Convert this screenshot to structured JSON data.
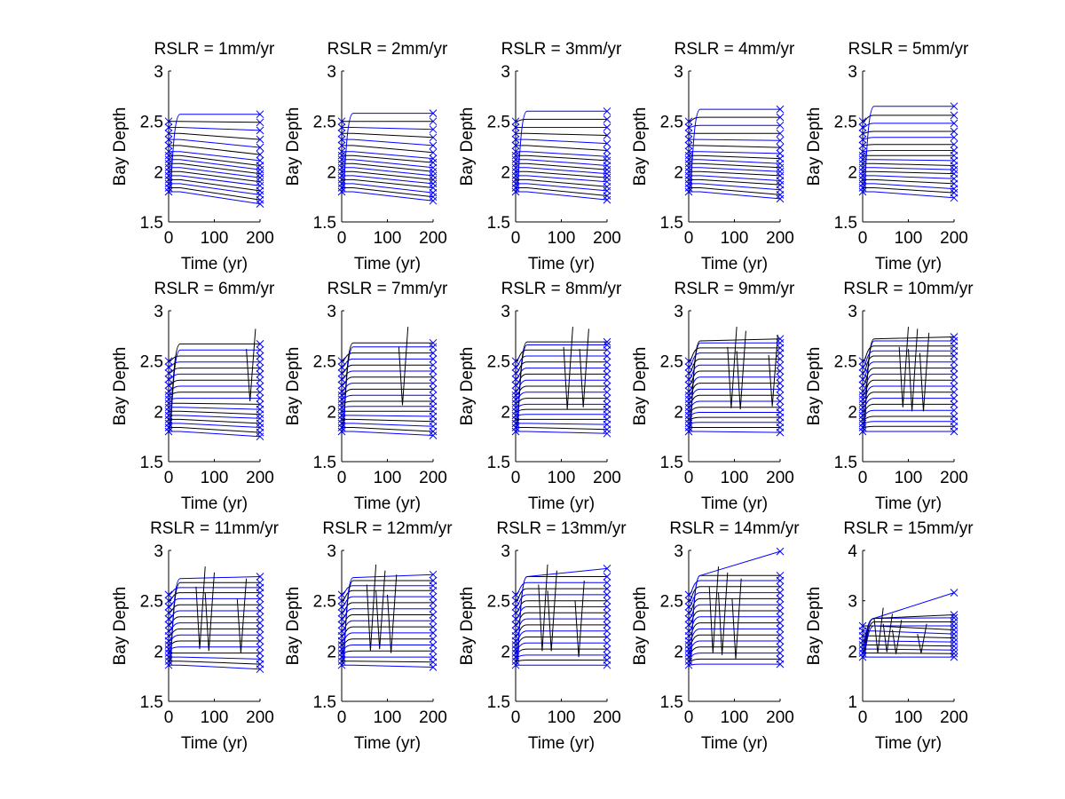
{
  "figure": {
    "background": "#ffffff",
    "line_color": "#000000",
    "marker_color": "#0000ff",
    "marker": "x"
  },
  "chart_data": [
    {
      "type": "line",
      "title": "RSLR = 1mm/yr",
      "xlabel": "Time (yr)",
      "ylabel": "Bay Depth",
      "xlim": [
        0,
        200
      ],
      "ylim": [
        1.5,
        3
      ],
      "xticks": [
        0,
        100,
        200
      ],
      "yticks": [
        1.5,
        2,
        2.5,
        3
      ],
      "ytick_labels": [
        "1.5",
        "2",
        "2.5",
        "3"
      ],
      "start_depths": [
        1.8,
        1.84,
        1.88,
        1.92,
        1.96,
        2.0,
        2.04,
        2.08,
        2.12,
        2.16,
        2.2,
        2.26,
        2.32,
        2.38,
        2.44,
        2.5
      ],
      "end_depths": [
        1.68,
        1.72,
        1.77,
        1.81,
        1.86,
        1.9,
        1.94,
        1.98,
        2.02,
        2.06,
        2.11,
        2.17,
        2.24,
        2.32,
        2.41,
        2.49,
        2.57
      ],
      "max_depth": 2.52,
      "spikes": []
    },
    {
      "type": "line",
      "title": "RSLR = 2mm/yr",
      "xlabel": "Time (yr)",
      "ylabel": "Bay Depth",
      "xlim": [
        0,
        200
      ],
      "ylim": [
        1.5,
        3
      ],
      "xticks": [
        0,
        100,
        200
      ],
      "yticks": [
        1.5,
        2,
        2.5,
        3
      ],
      "ytick_labels": [
        "1.5",
        "2",
        "2.5",
        "3"
      ],
      "start_depths": [
        1.8,
        1.84,
        1.88,
        1.92,
        1.96,
        2.0,
        2.04,
        2.08,
        2.12,
        2.16,
        2.2,
        2.26,
        2.32,
        2.38,
        2.44,
        2.5
      ],
      "end_depths": [
        1.71,
        1.75,
        1.79,
        1.84,
        1.88,
        1.92,
        1.96,
        2.0,
        2.04,
        2.09,
        2.13,
        2.19,
        2.26,
        2.34,
        2.42,
        2.5,
        2.58
      ],
      "max_depth": 2.53,
      "spikes": []
    },
    {
      "type": "line",
      "title": "RSLR = 3mm/yr",
      "xlabel": "Time (yr)",
      "ylabel": "Bay Depth",
      "xlim": [
        0,
        200
      ],
      "ylim": [
        1.5,
        3
      ],
      "xticks": [
        0,
        100,
        200
      ],
      "yticks": [
        1.5,
        2,
        2.5,
        3
      ],
      "ytick_labels": [
        "1.5",
        "2",
        "2.5",
        "3"
      ],
      "start_depths": [
        1.8,
        1.84,
        1.88,
        1.92,
        1.96,
        2.0,
        2.04,
        2.08,
        2.12,
        2.16,
        2.2,
        2.26,
        2.32,
        2.38,
        2.44,
        2.5
      ],
      "end_depths": [
        1.72,
        1.76,
        1.81,
        1.85,
        1.9,
        1.94,
        1.98,
        2.02,
        2.06,
        2.11,
        2.15,
        2.21,
        2.28,
        2.36,
        2.44,
        2.52,
        2.6
      ],
      "max_depth": 2.54,
      "spikes": []
    },
    {
      "type": "line",
      "title": "RSLR = 4mm/yr",
      "xlabel": "Time (yr)",
      "ylabel": "Bay Depth",
      "xlim": [
        0,
        200
      ],
      "ylim": [
        1.5,
        3
      ],
      "xticks": [
        0,
        100,
        200
      ],
      "yticks": [
        1.5,
        2,
        2.5,
        3
      ],
      "ytick_labels": [
        "1.5",
        "2",
        "2.5",
        "3"
      ],
      "start_depths": [
        1.8,
        1.84,
        1.88,
        1.92,
        1.96,
        2.0,
        2.04,
        2.08,
        2.12,
        2.16,
        2.2,
        2.26,
        2.32,
        2.38,
        2.44,
        2.5
      ],
      "end_depths": [
        1.73,
        1.77,
        1.82,
        1.87,
        1.91,
        1.96,
        2.0,
        2.04,
        2.08,
        2.13,
        2.18,
        2.24,
        2.31,
        2.38,
        2.46,
        2.54,
        2.62
      ],
      "max_depth": 2.55,
      "spikes": []
    },
    {
      "type": "line",
      "title": "RSLR = 5mm/yr",
      "xlabel": "Time (yr)",
      "ylabel": "Bay Depth",
      "xlim": [
        0,
        200
      ],
      "ylim": [
        1.5,
        3
      ],
      "xticks": [
        0,
        100,
        200
      ],
      "yticks": [
        1.5,
        2,
        2.5,
        3
      ],
      "ytick_labels": [
        "1.5",
        "2",
        "2.5",
        "3"
      ],
      "start_depths": [
        1.8,
        1.84,
        1.88,
        1.92,
        1.96,
        2.0,
        2.04,
        2.08,
        2.12,
        2.16,
        2.2,
        2.26,
        2.32,
        2.38,
        2.44,
        2.5
      ],
      "end_depths": [
        1.74,
        1.79,
        1.83,
        1.88,
        1.93,
        1.98,
        2.02,
        2.06,
        2.11,
        2.16,
        2.21,
        2.27,
        2.34,
        2.4,
        2.48,
        2.56,
        2.65
      ],
      "max_depth": 2.56,
      "spikes": []
    },
    {
      "type": "line",
      "title": "RSLR = 6mm/yr",
      "xlabel": "Time (yr)",
      "ylabel": "Bay Depth",
      "xlim": [
        0,
        200
      ],
      "ylim": [
        1.5,
        3
      ],
      "xticks": [
        0,
        100,
        200
      ],
      "yticks": [
        1.5,
        2,
        2.5,
        3
      ],
      "ytick_labels": [
        "1.5",
        "2",
        "2.5",
        "3"
      ],
      "start_depths": [
        1.8,
        1.84,
        1.88,
        1.92,
        1.96,
        2.0,
        2.04,
        2.08,
        2.12,
        2.16,
        2.2,
        2.26,
        2.32,
        2.38,
        2.44,
        2.5
      ],
      "end_depths": [
        1.75,
        1.79,
        1.84,
        1.88,
        1.93,
        1.97,
        2.02,
        2.07,
        2.13,
        2.19,
        2.25,
        2.31,
        2.37,
        2.43,
        2.49,
        2.55,
        2.61,
        2.67
      ],
      "max_depth": 2.57,
      "spikes": [
        {
          "start": 170,
          "end": 190,
          "low": 2.1,
          "high": 2.82
        }
      ]
    },
    {
      "type": "line",
      "title": "RSLR = 7mm/yr",
      "xlabel": "Time (yr)",
      "ylabel": "Bay Depth",
      "xlim": [
        0,
        200
      ],
      "ylim": [
        1.5,
        3
      ],
      "xticks": [
        0,
        100,
        200
      ],
      "yticks": [
        1.5,
        2,
        2.5,
        3
      ],
      "ytick_labels": [
        "1.5",
        "2",
        "2.5",
        "3"
      ],
      "start_depths": [
        1.8,
        1.84,
        1.88,
        1.92,
        1.96,
        2.0,
        2.04,
        2.08,
        2.12,
        2.16,
        2.2,
        2.26,
        2.32,
        2.38,
        2.44,
        2.5
      ],
      "end_depths": [
        1.76,
        1.8,
        1.85,
        1.9,
        1.95,
        2.0,
        2.05,
        2.1,
        2.16,
        2.22,
        2.28,
        2.34,
        2.4,
        2.46,
        2.52,
        2.58,
        2.64,
        2.68
      ],
      "max_depth": 2.58,
      "spikes": [
        {
          "start": 125,
          "end": 145,
          "low": 2.06,
          "high": 2.84
        }
      ]
    },
    {
      "type": "line",
      "title": "RSLR = 8mm/yr",
      "xlabel": "Time (yr)",
      "ylabel": "Bay Depth",
      "xlim": [
        0,
        200
      ],
      "ylim": [
        1.5,
        3
      ],
      "xticks": [
        0,
        100,
        200
      ],
      "yticks": [
        1.5,
        2,
        2.5,
        3
      ],
      "ytick_labels": [
        "1.5",
        "2",
        "2.5",
        "3"
      ],
      "start_depths": [
        1.8,
        1.84,
        1.88,
        1.92,
        1.96,
        2.0,
        2.04,
        2.08,
        2.12,
        2.16,
        2.2,
        2.26,
        2.32,
        2.38,
        2.44,
        2.5
      ],
      "end_depths": [
        1.78,
        1.82,
        1.87,
        1.92,
        1.97,
        2.02,
        2.07,
        2.13,
        2.19,
        2.25,
        2.31,
        2.37,
        2.43,
        2.49,
        2.55,
        2.61,
        2.66,
        2.69
      ],
      "max_depth": 2.59,
      "spikes": [
        {
          "start": 105,
          "end": 125,
          "low": 2.02,
          "high": 2.84
        },
        {
          "start": 140,
          "end": 160,
          "low": 2.04,
          "high": 2.82
        }
      ]
    },
    {
      "type": "line",
      "title": "RSLR = 9mm/yr",
      "xlabel": "Time (yr)",
      "ylabel": "Bay Depth",
      "xlim": [
        0,
        200
      ],
      "ylim": [
        1.5,
        3
      ],
      "xticks": [
        0,
        100,
        200
      ],
      "yticks": [
        1.5,
        2,
        2.5,
        3
      ],
      "ytick_labels": [
        "1.5",
        "2",
        "2.5",
        "3"
      ],
      "start_depths": [
        1.8,
        1.84,
        1.88,
        1.92,
        1.96,
        2.0,
        2.04,
        2.08,
        2.12,
        2.16,
        2.2,
        2.26,
        2.32,
        2.38,
        2.44,
        2.5
      ],
      "end_depths": [
        1.79,
        1.84,
        1.89,
        1.94,
        1.99,
        2.04,
        2.1,
        2.16,
        2.22,
        2.28,
        2.34,
        2.4,
        2.46,
        2.52,
        2.58,
        2.63,
        2.68,
        2.72
      ],
      "max_depth": 2.6,
      "spikes": [
        {
          "start": 85,
          "end": 105,
          "low": 2.03,
          "high": 2.84
        },
        {
          "start": 105,
          "end": 125,
          "low": 2.02,
          "high": 2.8
        },
        {
          "start": 175,
          "end": 195,
          "low": 2.05,
          "high": 2.76
        }
      ]
    },
    {
      "type": "line",
      "title": "RSLR = 10mm/yr",
      "xlabel": "Time (yr)",
      "ylabel": "Bay Depth",
      "xlim": [
        0,
        200
      ],
      "ylim": [
        1.5,
        3
      ],
      "xticks": [
        0,
        100,
        200
      ],
      "yticks": [
        1.5,
        2,
        2.5,
        3
      ],
      "ytick_labels": [
        "1.5",
        "2",
        "2.5",
        "3"
      ],
      "start_depths": [
        1.8,
        1.84,
        1.88,
        1.92,
        1.96,
        2.0,
        2.04,
        2.08,
        2.12,
        2.16,
        2.2,
        2.26,
        2.32,
        2.38,
        2.44,
        2.5
      ],
      "end_depths": [
        1.8,
        1.85,
        1.9,
        1.95,
        2.01,
        2.07,
        2.13,
        2.19,
        2.25,
        2.31,
        2.37,
        2.43,
        2.49,
        2.55,
        2.6,
        2.65,
        2.7,
        2.74
      ],
      "max_depth": 2.62,
      "spikes": [
        {
          "start": 80,
          "end": 100,
          "low": 2.04,
          "high": 2.84
        },
        {
          "start": 100,
          "end": 120,
          "low": 2.0,
          "high": 2.82
        },
        {
          "start": 125,
          "end": 145,
          "low": 2.0,
          "high": 2.78
        }
      ]
    },
    {
      "type": "line",
      "title": "RSLR = 11mm/yr",
      "xlabel": "Time (yr)",
      "ylabel": "Bay Depth",
      "xlim": [
        0,
        200
      ],
      "ylim": [
        1.5,
        3
      ],
      "xticks": [
        0,
        100,
        200
      ],
      "yticks": [
        1.5,
        2,
        2.5,
        3
      ],
      "ytick_labels": [
        "1.5",
        "2",
        "2.5",
        "3"
      ],
      "start_depths": [
        1.86,
        1.9,
        1.94,
        1.98,
        2.02,
        2.06,
        2.1,
        2.15,
        2.2,
        2.26,
        2.32,
        2.38,
        2.44,
        2.5,
        2.56
      ],
      "end_depths": [
        1.82,
        1.87,
        1.92,
        1.98,
        2.04,
        2.1,
        2.16,
        2.22,
        2.28,
        2.34,
        2.4,
        2.46,
        2.52,
        2.58,
        2.63,
        2.68,
        2.74
      ],
      "max_depth": 2.62,
      "spikes": [
        {
          "start": 60,
          "end": 80,
          "low": 2.02,
          "high": 2.84
        },
        {
          "start": 80,
          "end": 100,
          "low": 2.0,
          "high": 2.78
        },
        {
          "start": 150,
          "end": 170,
          "low": 1.98,
          "high": 2.72
        }
      ]
    },
    {
      "type": "line",
      "title": "RSLR = 12mm/yr",
      "xlabel": "Time (yr)",
      "ylabel": "Bay Depth",
      "xlim": [
        0,
        200
      ],
      "ylim": [
        1.5,
        3
      ],
      "xticks": [
        0,
        100,
        200
      ],
      "yticks": [
        1.5,
        2,
        2.5,
        3
      ],
      "ytick_labels": [
        "1.5",
        "2",
        "2.5",
        "3"
      ],
      "start_depths": [
        1.86,
        1.9,
        1.94,
        1.98,
        2.02,
        2.06,
        2.1,
        2.15,
        2.2,
        2.26,
        2.32,
        2.38,
        2.44,
        2.5,
        2.56
      ],
      "end_depths": [
        1.84,
        1.89,
        1.94,
        2.0,
        2.06,
        2.12,
        2.18,
        2.24,
        2.3,
        2.36,
        2.42,
        2.48,
        2.54,
        2.6,
        2.65,
        2.7,
        2.76
      ],
      "max_depth": 2.63,
      "spikes": [
        {
          "start": 55,
          "end": 75,
          "low": 2.0,
          "high": 2.86
        },
        {
          "start": 75,
          "end": 95,
          "low": 2.02,
          "high": 2.8
        },
        {
          "start": 100,
          "end": 120,
          "low": 1.98,
          "high": 2.76
        }
      ]
    },
    {
      "type": "line",
      "title": "RSLR = 13mm/yr",
      "xlabel": "Time (yr)",
      "ylabel": "Bay Depth",
      "xlim": [
        0,
        200
      ],
      "ylim": [
        1.5,
        3
      ],
      "xticks": [
        0,
        100,
        200
      ],
      "yticks": [
        1.5,
        2,
        2.5,
        3
      ],
      "ytick_labels": [
        "1.5",
        "2",
        "2.5",
        "3"
      ],
      "start_depths": [
        1.86,
        1.9,
        1.94,
        1.98,
        2.02,
        2.06,
        2.1,
        2.15,
        2.2,
        2.26,
        2.32,
        2.38,
        2.44,
        2.5,
        2.56
      ],
      "end_depths": [
        1.86,
        1.91,
        1.96,
        2.02,
        2.08,
        2.14,
        2.2,
        2.26,
        2.32,
        2.38,
        2.44,
        2.5,
        2.56,
        2.62,
        2.68,
        2.74,
        2.82
      ],
      "max_depth": 2.64,
      "spikes": [
        {
          "start": 50,
          "end": 70,
          "low": 2.0,
          "high": 2.86
        },
        {
          "start": 70,
          "end": 90,
          "low": 2.0,
          "high": 2.8
        },
        {
          "start": 130,
          "end": 150,
          "low": 1.94,
          "high": 2.7
        }
      ]
    },
    {
      "type": "line",
      "title": "RSLR = 14mm/yr",
      "xlabel": "Time (yr)",
      "ylabel": "Bay Depth",
      "xlim": [
        0,
        200
      ],
      "ylim": [
        1.5,
        3
      ],
      "xticks": [
        0,
        100,
        200
      ],
      "yticks": [
        1.5,
        2,
        2.5,
        3
      ],
      "ytick_labels": [
        "1.5",
        "2",
        "2.5",
        "3"
      ],
      "start_depths": [
        1.86,
        1.9,
        1.94,
        1.98,
        2.02,
        2.06,
        2.1,
        2.15,
        2.2,
        2.26,
        2.32,
        2.38,
        2.44,
        2.5,
        2.56
      ],
      "end_depths": [
        1.87,
        1.92,
        1.98,
        2.04,
        2.1,
        2.16,
        2.22,
        2.28,
        2.34,
        2.4,
        2.46,
        2.52,
        2.58,
        2.64,
        2.7,
        2.75,
        2.99
      ],
      "max_depth": 2.65,
      "spikes": [
        {
          "start": 45,
          "end": 65,
          "low": 1.98,
          "high": 2.84
        },
        {
          "start": 65,
          "end": 85,
          "low": 1.96,
          "high": 2.78
        },
        {
          "start": 95,
          "end": 115,
          "low": 1.92,
          "high": 2.72
        }
      ]
    },
    {
      "type": "line",
      "title": "RSLR = 15mm/yr",
      "xlabel": "Time (yr)",
      "ylabel": "Bay Depth",
      "xlim": [
        0,
        200
      ],
      "ylim": [
        1,
        4
      ],
      "xticks": [
        0,
        100,
        200
      ],
      "yticks": [
        1,
        2,
        3,
        4
      ],
      "ytick_labels": [
        "1",
        "2",
        "3",
        "4"
      ],
      "start_depths": [
        1.88,
        1.96,
        2.04,
        2.12,
        2.2,
        2.3,
        2.4,
        2.5
      ],
      "end_depths": [
        1.88,
        1.95,
        2.02,
        2.1,
        2.18,
        2.26,
        2.34,
        2.42,
        2.5,
        2.58,
        2.66,
        2.72,
        3.16
      ],
      "max_depth": 2.55,
      "spikes": [
        {
          "start": 25,
          "end": 45,
          "low": 1.96,
          "high": 2.86
        },
        {
          "start": 45,
          "end": 65,
          "low": 1.98,
          "high": 2.74
        },
        {
          "start": 65,
          "end": 85,
          "low": 1.94,
          "high": 2.62
        },
        {
          "start": 120,
          "end": 140,
          "low": 1.96,
          "high": 2.54
        }
      ]
    }
  ]
}
